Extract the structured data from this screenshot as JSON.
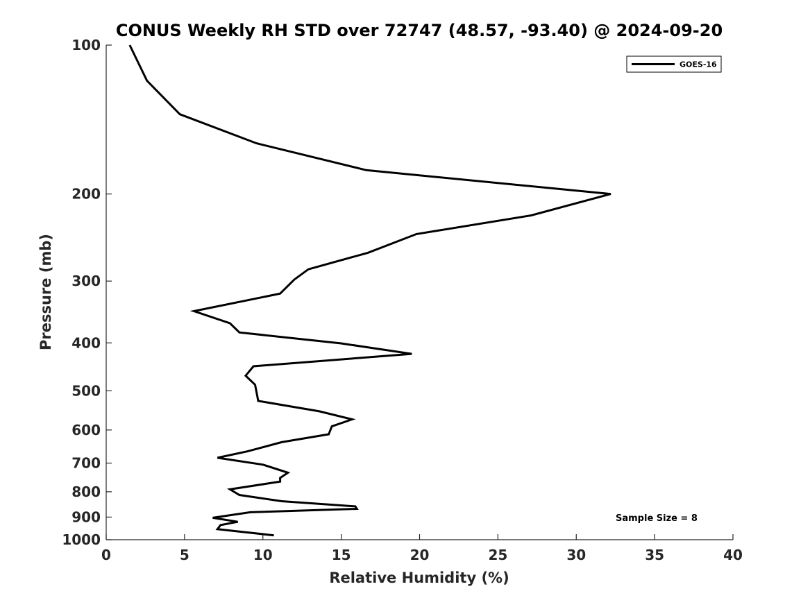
{
  "chart_data": {
    "type": "line",
    "title": "CONUS Weekly RH STD over 72747 (48.57, -93.40) @ 2024-09-20",
    "xlabel": "Relative Humidity (%)",
    "ylabel": "Pressure (mb)",
    "xlim": [
      0,
      40
    ],
    "ylim": [
      1000,
      100
    ],
    "yscale": "log",
    "y_inverted": true,
    "x_ticks": [
      "0",
      "5",
      "10",
      "15",
      "20",
      "25",
      "30",
      "35",
      "40"
    ],
    "y_ticks": [
      "100",
      "200",
      "300",
      "400",
      "500",
      "600",
      "700",
      "800",
      "900",
      "1000"
    ],
    "grid": false,
    "legend": {
      "position": "top-right",
      "entries": [
        "GOES-16"
      ]
    },
    "annotation": "Sample Size = 8",
    "series": [
      {
        "name": "GOES-16",
        "color": "#000000",
        "x": [
          1.5,
          2.6,
          4.7,
          9.6,
          16.6,
          32.2,
          27.1,
          19.8,
          16.7,
          12.9,
          12.0,
          11.1,
          5.6,
          7.9,
          8.5,
          15.0,
          19.5,
          9.4,
          8.9,
          9.5,
          9.6,
          9.7,
          13.6,
          15.7,
          14.4,
          14.2,
          11.2,
          9.0,
          7.1,
          10.0,
          11.6,
          11.1,
          11.1,
          7.9,
          8.5,
          11.2,
          15.9,
          16.0,
          9.2,
          6.8,
          8.4,
          7.3,
          7.1,
          10.7
        ],
        "y": [
          100,
          118,
          138,
          158,
          179,
          200,
          221,
          241,
          263,
          284,
          298,
          318,
          345,
          365,
          381,
          401,
          421,
          446,
          466,
          486,
          504,
          524,
          550,
          571,
          590,
          612,
          635,
          663,
          683,
          705,
          732,
          750,
          763,
          791,
          812,
          836,
          856,
          866,
          880,
          903,
          920,
          934,
          952,
          980
        ]
      }
    ]
  }
}
